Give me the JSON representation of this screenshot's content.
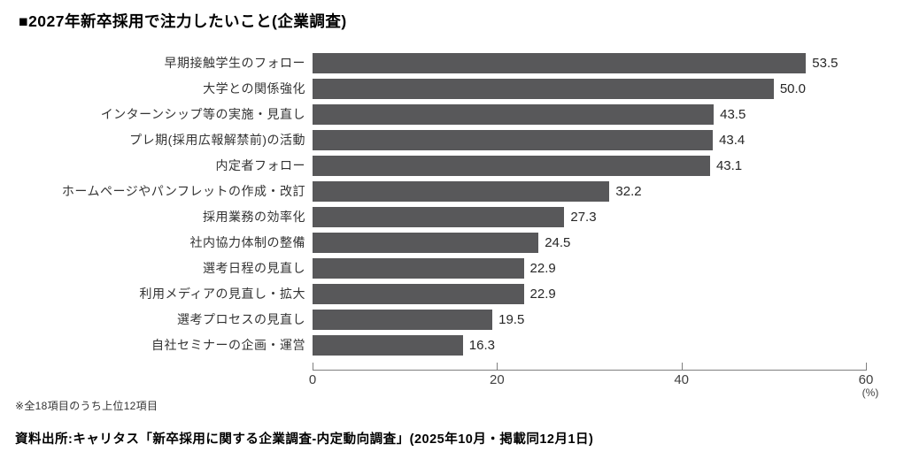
{
  "title": "■2027年新卒採用で注力したいこと(企業調査)",
  "chart_data": {
    "type": "bar",
    "orientation": "horizontal",
    "title": "■2027年新卒採用で注力したいこと(企業調査)",
    "categories": [
      "早期接触学生のフォロー",
      "大学との関係強化",
      "インターンシップ等の実施・見直し",
      "プレ期(採用広報解禁前)の活動",
      "内定者フォロー",
      "ホームページやパンフレットの作成・改訂",
      "採用業務の効率化",
      "社内協力体制の整備",
      "選考日程の見直し",
      "利用メディアの見直し・拡大",
      "選考プロセスの見直し",
      "自社セミナーの企画・運営"
    ],
    "values": [
      53.5,
      50.0,
      43.5,
      43.4,
      43.1,
      32.2,
      27.3,
      24.5,
      22.9,
      22.9,
      19.5,
      16.3
    ],
    "value_labels": [
      "53.5",
      "50.0",
      "43.5",
      "43.4",
      "43.1",
      "32.2",
      "27.3",
      "24.5",
      "22.9",
      "22.9",
      "19.5",
      "16.3"
    ],
    "xlabel": "",
    "ylabel": "",
    "xlim": [
      0,
      60
    ],
    "xticks": [
      0,
      20,
      40,
      60
    ],
    "unit_label": "(%)",
    "bar_color": "#58585A",
    "axis_color": "#7f7f7f",
    "grid": false,
    "legend": "none"
  },
  "footnotes": {
    "note": "※全18項目のうち上位12項目",
    "source": "資料出所:キャリタス「新卒採用に関する企業調査-内定動向調査」(2025年10月・掲載同12月1日)"
  }
}
